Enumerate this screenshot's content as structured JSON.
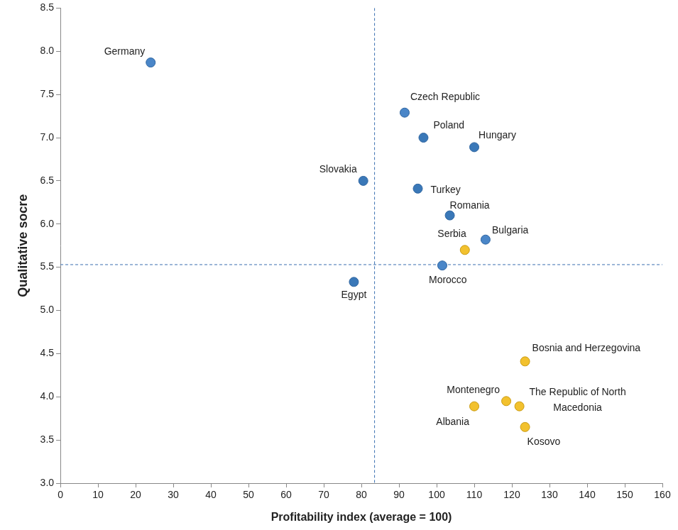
{
  "chart_data": {
    "type": "scatter",
    "x_label": "Profitability index (average = 100)",
    "y_label": "Qualitative socre",
    "point_labels": [
      "Germany",
      "Czech Republic",
      "Poland",
      "Hungary",
      "Slovakia",
      "Turkey",
      "Romania",
      "Bulgaria",
      "Serbia",
      "Morocco",
      "Egypt",
      "Bosnia and Herzegovina",
      "Albania",
      "Montenegro",
      "The Republic of North Macedonia",
      "Kosovo"
    ],
    "x": [
      24,
      91.5,
      96.5,
      110,
      80.5,
      95,
      103.5,
      113,
      107.5,
      101.5,
      78,
      123.5,
      110,
      118.5,
      122,
      123.5
    ],
    "values": [
      7.87,
      7.29,
      7.0,
      6.89,
      6.5,
      6.41,
      6.1,
      5.82,
      5.7,
      5.52,
      5.33,
      4.41,
      3.89,
      3.95,
      3.89,
      3.65
    ],
    "colors": [
      "#4a86c8",
      "#4a86c8",
      "#3a78b8",
      "#3a78b8",
      "#3a78b8",
      "#3a78b8",
      "#3a78b8",
      "#4a86c8",
      "#f2c12e",
      "#4a86c8",
      "#3a78b8",
      "#f2c12e",
      "#f2c12e",
      "#f2c12e",
      "#f2c12e",
      "#f2c12e"
    ],
    "x_line": 83.5,
    "y_line": 5.53,
    "xlim": [
      0,
      160
    ],
    "xticks": [
      0,
      10,
      20,
      30,
      40,
      50,
      60,
      70,
      80,
      90,
      100,
      110,
      120,
      130,
      140,
      150,
      160
    ],
    "ylim": [
      3.0,
      8.5
    ],
    "yticks": [
      {
        "value": 3,
        "label": "3.0"
      },
      3.5,
      {
        "value": 4,
        "label": "4.0"
      },
      4.5,
      {
        "value": 5,
        "label": "5.0"
      },
      5.5,
      {
        "value": 6,
        "label": "6.0"
      },
      6.5,
      {
        "value": 7,
        "label": "7.0"
      },
      7.5,
      {
        "value": 8,
        "label": "8.0"
      },
      8.5
    ],
    "grid": false,
    "marker": "circle"
  }
}
